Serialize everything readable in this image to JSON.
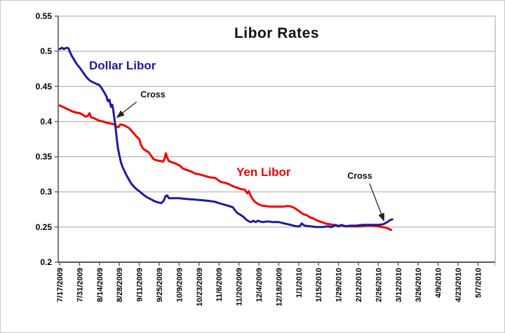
{
  "chart_data": {
    "type": "line",
    "title": "Libor Rates",
    "xlabel": "",
    "ylabel": "",
    "ylim": [
      0.2,
      0.55
    ],
    "ytick_values": [
      0.2,
      0.25,
      0.3,
      0.35,
      0.4,
      0.45,
      0.5,
      0.55
    ],
    "ytick_labels": [
      "0.2",
      "0.25",
      "0.3",
      "0.35",
      "0.4",
      "0.45",
      "0.5",
      "0.55"
    ],
    "x_tick_labels": [
      "7/17/2009",
      "7/31/2009",
      "8/14/2009",
      "8/28/2009",
      "9/11/2009",
      "9/25/2009",
      "10/9/2009",
      "10/23/2009",
      "11/6/2009",
      "11/20/2009",
      "12/4/2009",
      "12/18/2009",
      "1/1/2010",
      "1/15/2010",
      "1/29/2010",
      "2/12/2010",
      "2/26/2010",
      "3/12/2010",
      "3/26/2010",
      "4/9/2010",
      "4/23/2010",
      "5/7/2010"
    ],
    "x_note": "series x values are in tick-index units, 0 = 7/17/2009, 1 tick = 14 days",
    "grid": "horizontal",
    "legend": "inline floating labels",
    "series": [
      {
        "name": "Yen Libor",
        "color": "#ee0000",
        "points": [
          [
            0,
            0.423
          ],
          [
            0.15,
            0.421
          ],
          [
            0.3,
            0.419
          ],
          [
            0.45,
            0.417
          ],
          [
            0.6,
            0.415
          ],
          [
            0.8,
            0.413
          ],
          [
            1,
            0.412
          ],
          [
            1.15,
            0.41
          ],
          [
            1.3,
            0.407
          ],
          [
            1.42,
            0.408
          ],
          [
            1.5,
            0.412
          ],
          [
            1.58,
            0.406
          ],
          [
            1.72,
            0.405
          ],
          [
            1.85,
            0.403
          ],
          [
            2,
            0.401
          ],
          [
            2.2,
            0.4
          ],
          [
            2.4,
            0.398
          ],
          [
            2.6,
            0.397
          ],
          [
            2.75,
            0.396
          ],
          [
            2.85,
            0.393
          ],
          [
            2.95,
            0.392
          ],
          [
            3.05,
            0.396
          ],
          [
            3.2,
            0.395
          ],
          [
            3.35,
            0.393
          ],
          [
            3.48,
            0.391
          ],
          [
            3.58,
            0.388
          ],
          [
            3.7,
            0.384
          ],
          [
            3.85,
            0.379
          ],
          [
            4,
            0.375
          ],
          [
            4.08,
            0.367
          ],
          [
            4.18,
            0.362
          ],
          [
            4.3,
            0.359
          ],
          [
            4.45,
            0.357
          ],
          [
            4.58,
            0.352
          ],
          [
            4.7,
            0.347
          ],
          [
            4.85,
            0.345
          ],
          [
            5.05,
            0.344
          ],
          [
            5.2,
            0.343
          ],
          [
            5.28,
            0.348
          ],
          [
            5.33,
            0.355
          ],
          [
            5.4,
            0.349
          ],
          [
            5.48,
            0.344
          ],
          [
            5.65,
            0.342
          ],
          [
            5.85,
            0.34
          ],
          [
            6.05,
            0.337
          ],
          [
            6.2,
            0.333
          ],
          [
            6.4,
            0.331
          ],
          [
            6.6,
            0.329
          ],
          [
            6.8,
            0.326
          ],
          [
            7,
            0.325
          ],
          [
            7.25,
            0.323
          ],
          [
            7.5,
            0.321
          ],
          [
            7.8,
            0.32
          ],
          [
            7.95,
            0.317
          ],
          [
            8.1,
            0.314
          ],
          [
            8.3,
            0.313
          ],
          [
            8.5,
            0.311
          ],
          [
            8.7,
            0.308
          ],
          [
            8.9,
            0.306
          ],
          [
            9.1,
            0.304
          ],
          [
            9.3,
            0.303
          ],
          [
            9.42,
            0.298
          ],
          [
            9.5,
            0.301
          ],
          [
            9.58,
            0.295
          ],
          [
            9.68,
            0.29
          ],
          [
            9.8,
            0.286
          ],
          [
            9.95,
            0.283
          ],
          [
            10.1,
            0.281
          ],
          [
            10.3,
            0.28
          ],
          [
            10.6,
            0.279
          ],
          [
            10.9,
            0.279
          ],
          [
            11.2,
            0.279
          ],
          [
            11.45,
            0.28
          ],
          [
            11.65,
            0.279
          ],
          [
            11.8,
            0.277
          ],
          [
            11.95,
            0.274
          ],
          [
            12.1,
            0.271
          ],
          [
            12.25,
            0.268
          ],
          [
            12.4,
            0.267
          ],
          [
            12.55,
            0.264
          ],
          [
            12.75,
            0.262
          ],
          [
            12.95,
            0.259
          ],
          [
            13.15,
            0.257
          ],
          [
            13.35,
            0.255
          ],
          [
            13.55,
            0.254
          ],
          [
            13.75,
            0.253
          ],
          [
            13.95,
            0.252
          ],
          [
            14.2,
            0.252
          ],
          [
            14.5,
            0.251
          ],
          [
            14.8,
            0.251
          ],
          [
            15.1,
            0.251
          ],
          [
            15.4,
            0.252
          ],
          [
            15.7,
            0.252
          ],
          [
            16,
            0.251
          ],
          [
            16.2,
            0.25
          ],
          [
            16.4,
            0.249
          ],
          [
            16.55,
            0.247
          ],
          [
            16.65,
            0.246
          ]
        ]
      },
      {
        "name": "Dollar Libor",
        "color": "#1c1c99",
        "points": [
          [
            0,
            0.503
          ],
          [
            0.12,
            0.505
          ],
          [
            0.22,
            0.503
          ],
          [
            0.35,
            0.505
          ],
          [
            0.45,
            0.504
          ],
          [
            0.5,
            0.5
          ],
          [
            0.62,
            0.493
          ],
          [
            0.75,
            0.487
          ],
          [
            0.88,
            0.481
          ],
          [
            1,
            0.477
          ],
          [
            1.15,
            0.471
          ],
          [
            1.3,
            0.465
          ],
          [
            1.45,
            0.46
          ],
          [
            1.6,
            0.457
          ],
          [
            1.75,
            0.455
          ],
          [
            1.9,
            0.453
          ],
          [
            2,
            0.452
          ],
          [
            2.1,
            0.448
          ],
          [
            2.25,
            0.441
          ],
          [
            2.35,
            0.436
          ],
          [
            2.42,
            0.429
          ],
          [
            2.5,
            0.431
          ],
          [
            2.58,
            0.421
          ],
          [
            2.64,
            0.424
          ],
          [
            2.68,
            0.419
          ],
          [
            2.72,
            0.411
          ],
          [
            2.78,
            0.398
          ],
          [
            2.83,
            0.386
          ],
          [
            2.88,
            0.373
          ],
          [
            2.93,
            0.362
          ],
          [
            3,
            0.352
          ],
          [
            3.07,
            0.343
          ],
          [
            3.15,
            0.336
          ],
          [
            3.25,
            0.33
          ],
          [
            3.35,
            0.324
          ],
          [
            3.45,
            0.319
          ],
          [
            3.55,
            0.314
          ],
          [
            3.65,
            0.31
          ],
          [
            3.78,
            0.306
          ],
          [
            3.9,
            0.303
          ],
          [
            4,
            0.301
          ],
          [
            4.12,
            0.298
          ],
          [
            4.25,
            0.295
          ],
          [
            4.4,
            0.292
          ],
          [
            4.55,
            0.29
          ],
          [
            4.75,
            0.287
          ],
          [
            4.95,
            0.285
          ],
          [
            5.1,
            0.284
          ],
          [
            5.22,
            0.287
          ],
          [
            5.32,
            0.294
          ],
          [
            5.4,
            0.295
          ],
          [
            5.48,
            0.291
          ],
          [
            5.7,
            0.291
          ],
          [
            6,
            0.291
          ],
          [
            6.35,
            0.29
          ],
          [
            6.8,
            0.289
          ],
          [
            7.2,
            0.288
          ],
          [
            7.55,
            0.287
          ],
          [
            7.8,
            0.286
          ],
          [
            8,
            0.284
          ],
          [
            8.25,
            0.282
          ],
          [
            8.5,
            0.28
          ],
          [
            8.7,
            0.278
          ],
          [
            8.8,
            0.274
          ],
          [
            8.92,
            0.27
          ],
          [
            9.1,
            0.267
          ],
          [
            9.25,
            0.264
          ],
          [
            9.35,
            0.261
          ],
          [
            9.5,
            0.258
          ],
          [
            9.62,
            0.257
          ],
          [
            9.72,
            0.259
          ],
          [
            9.85,
            0.257
          ],
          [
            9.95,
            0.259
          ],
          [
            10.05,
            0.258
          ],
          [
            10.2,
            0.257
          ],
          [
            10.45,
            0.258
          ],
          [
            10.7,
            0.257
          ],
          [
            11,
            0.257
          ],
          [
            11.3,
            0.255
          ],
          [
            11.6,
            0.253
          ],
          [
            11.9,
            0.251
          ],
          [
            12.05,
            0.251
          ],
          [
            12.15,
            0.255
          ],
          [
            12.3,
            0.252
          ],
          [
            12.6,
            0.251
          ],
          [
            12.9,
            0.25
          ],
          [
            13.2,
            0.25
          ],
          [
            13.45,
            0.251
          ],
          [
            13.65,
            0.25
          ],
          [
            13.85,
            0.253
          ],
          [
            14,
            0.251
          ],
          [
            14.15,
            0.253
          ],
          [
            14.35,
            0.251
          ],
          [
            14.6,
            0.252
          ],
          [
            14.9,
            0.252
          ],
          [
            15.2,
            0.253
          ],
          [
            15.6,
            0.253
          ],
          [
            16,
            0.253
          ],
          [
            16.25,
            0.254
          ],
          [
            16.45,
            0.257
          ],
          [
            16.6,
            0.26
          ],
          [
            16.7,
            0.261
          ]
        ]
      }
    ],
    "annotations": [
      {
        "text": "Cross",
        "arrow_from": [
          3.86,
          0.428
        ],
        "arrow_to": [
          2.88,
          0.406
        ]
      },
      {
        "text": "Cross",
        "arrow_from": [
          15.56,
          0.312
        ],
        "arrow_to": [
          16.28,
          0.259
        ]
      }
    ]
  }
}
